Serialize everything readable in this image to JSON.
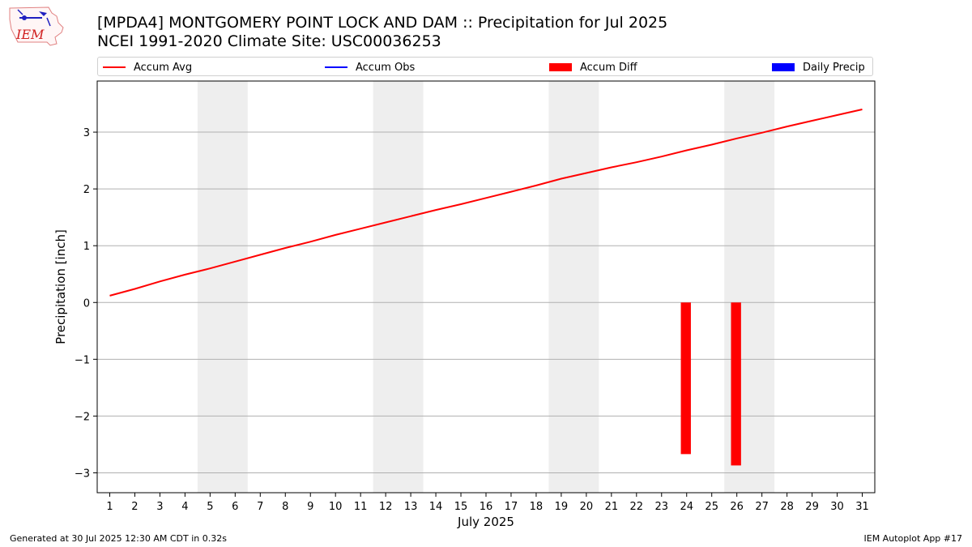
{
  "logo": {
    "text": "IEM"
  },
  "header": {
    "title_line1": "[MPDA4] MONTGOMERY POINT LOCK AND DAM :: Precipitation for Jul 2025",
    "title_line2": "NCEI 1991-2020 Climate Site: USC00036253"
  },
  "legend": {
    "items": [
      {
        "label": "Accum Avg",
        "kind": "line",
        "color": "#ff0000"
      },
      {
        "label": "Accum Obs",
        "kind": "line",
        "color": "#0000ff"
      },
      {
        "label": "Accum Diff",
        "kind": "bar",
        "color": "#ff0000"
      },
      {
        "label": "Daily Precip",
        "kind": "bar",
        "color": "#0000ff"
      }
    ]
  },
  "footer": {
    "left": "Generated at 30 Jul 2025 12:30 AM CDT in 0.32s",
    "right": "IEM Autoplot App #17"
  },
  "chart_data": {
    "type": "line",
    "xlabel": "July 2025",
    "ylabel": "Precipitation [inch]",
    "x": [
      1,
      2,
      3,
      4,
      5,
      6,
      7,
      8,
      9,
      10,
      11,
      12,
      13,
      14,
      15,
      16,
      17,
      18,
      19,
      20,
      21,
      22,
      23,
      24,
      25,
      26,
      27,
      28,
      29,
      30,
      31
    ],
    "xlim": [
      0.5,
      31.5
    ],
    "ylim": [
      -3.35,
      3.9
    ],
    "yticks": [
      -3,
      -2,
      -1,
      0,
      1,
      2,
      3
    ],
    "ytick_labels": [
      "−3",
      "−2",
      "−1",
      "0",
      "1",
      "2",
      "3"
    ],
    "grid": "horizontal",
    "weekend_bands": [
      [
        5,
        6
      ],
      [
        12,
        13
      ],
      [
        19,
        20
      ],
      [
        26,
        27
      ]
    ],
    "series": [
      {
        "name": "Accum Avg",
        "type": "line",
        "color": "#ff0000",
        "x": [
          1,
          2,
          3,
          4,
          5,
          6,
          7,
          8,
          9,
          10,
          11,
          12,
          13,
          14,
          15,
          16,
          17,
          18,
          19,
          20,
          21,
          22,
          23,
          24,
          25,
          26,
          27,
          28,
          29,
          30,
          31
        ],
        "values": [
          0.12,
          0.24,
          0.37,
          0.49,
          0.6,
          0.72,
          0.84,
          0.96,
          1.07,
          1.19,
          1.3,
          1.41,
          1.52,
          1.63,
          1.73,
          1.84,
          1.95,
          2.06,
          2.18,
          2.28,
          2.38,
          2.47,
          2.57,
          2.68,
          2.78,
          2.89,
          2.99,
          3.1,
          3.2,
          3.3,
          3.4
        ]
      },
      {
        "name": "Accum Obs",
        "type": "line",
        "color": "#0000ff",
        "x": [],
        "values": []
      },
      {
        "name": "Accum Diff",
        "type": "bar",
        "color": "#ff0000",
        "x": [
          24,
          26
        ],
        "values": [
          -2.67,
          -2.87
        ]
      },
      {
        "name": "Daily Precip",
        "type": "bar",
        "color": "#0000ff",
        "x": [],
        "values": []
      }
    ]
  }
}
